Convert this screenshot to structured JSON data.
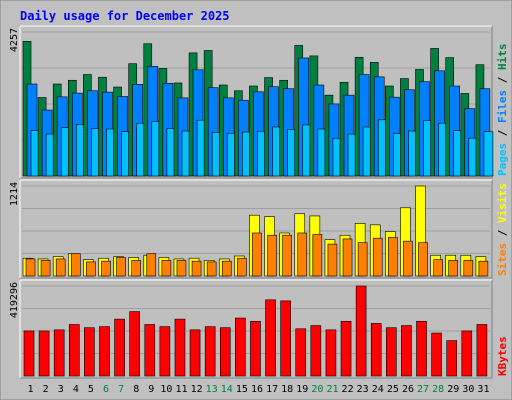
{
  "chart_data": [
    {
      "type": "bar",
      "panel": "hits_files_pages",
      "title": "Daily usage for December 2025",
      "ymax_label": "4257",
      "ylim": [
        0,
        4257
      ],
      "categories": [
        "1",
        "2",
        "3",
        "4",
        "5",
        "6",
        "7",
        "8",
        "9",
        "10",
        "11",
        "12",
        "13",
        "14",
        "15",
        "16",
        "17",
        "18",
        "19",
        "20",
        "21",
        "22",
        "23",
        "24",
        "25",
        "26",
        "27",
        "28",
        "29",
        "30",
        "31"
      ],
      "weekend_days": [
        "6",
        "7",
        "13",
        "14",
        "20",
        "21",
        "27",
        "28"
      ],
      "series": [
        {
          "name": "Hits",
          "color": "#008040",
          "values": [
            3980,
            2320,
            2720,
            2830,
            3000,
            2920,
            2630,
            3320,
            3910,
            3180,
            2750,
            3640,
            3710,
            2690,
            2520,
            2660,
            2910,
            2830,
            3860,
            3550,
            2390,
            2770,
            3510,
            3360,
            2660,
            2880,
            3150,
            3770,
            3500,
            2440,
            3290
          ]
        },
        {
          "name": "Files",
          "color": "#0080FF",
          "values": [
            2720,
            1950,
            2340,
            2450,
            2520,
            2480,
            2350,
            2710,
            3240,
            2740,
            2310,
            3140,
            2610,
            2310,
            2240,
            2490,
            2640,
            2580,
            3490,
            2690,
            2130,
            2390,
            3000,
            2930,
            2330,
            2550,
            2790,
            3110,
            2660,
            1990,
            2580
          ]
        },
        {
          "name": "Pages",
          "color": "#00C0FF",
          "values": [
            1340,
            1240,
            1430,
            1520,
            1400,
            1390,
            1310,
            1560,
            1610,
            1400,
            1330,
            1650,
            1290,
            1260,
            1300,
            1320,
            1450,
            1380,
            1510,
            1390,
            1110,
            1240,
            1450,
            1660,
            1250,
            1330,
            1640,
            1560,
            1340,
            1120,
            1310
          ]
        }
      ],
      "legend": [
        "Pages",
        "Files",
        "Hits"
      ]
    },
    {
      "type": "bar",
      "panel": "visits_sites",
      "ymax_label": "1214",
      "ylim": [
        0,
        1214
      ],
      "categories": [
        "1",
        "2",
        "3",
        "4",
        "5",
        "6",
        "7",
        "8",
        "9",
        "10",
        "11",
        "12",
        "13",
        "14",
        "15",
        "16",
        "17",
        "18",
        "19",
        "20",
        "21",
        "22",
        "23",
        "24",
        "25",
        "26",
        "27",
        "28",
        "29",
        "30",
        "31"
      ],
      "series": [
        {
          "name": "Visits",
          "color": "#FFFF00",
          "values": [
            240,
            230,
            260,
            300,
            220,
            240,
            260,
            250,
            280,
            250,
            230,
            240,
            210,
            230,
            270,
            820,
            800,
            580,
            840,
            810,
            490,
            550,
            710,
            690,
            600,
            920,
            1214,
            280,
            280,
            280,
            260
          ]
        },
        {
          "name": "Sites",
          "color": "#FF8000",
          "values": [
            230,
            210,
            230,
            300,
            190,
            200,
            250,
            210,
            300,
            210,
            210,
            200,
            190,
            200,
            240,
            580,
            550,
            550,
            580,
            560,
            430,
            500,
            450,
            510,
            520,
            470,
            450,
            220,
            210,
            210,
            200
          ]
        }
      ],
      "legend": [
        "Sites",
        "Visits"
      ]
    },
    {
      "type": "bar",
      "panel": "kbytes",
      "ymax_label": "419296",
      "ylim": [
        0,
        419296
      ],
      "categories": [
        "1",
        "2",
        "3",
        "4",
        "5",
        "6",
        "7",
        "8",
        "9",
        "10",
        "11",
        "12",
        "13",
        "14",
        "15",
        "16",
        "17",
        "18",
        "19",
        "20",
        "21",
        "22",
        "23",
        "24",
        "25",
        "26",
        "27",
        "28",
        "29",
        "30",
        "31"
      ],
      "series": [
        {
          "name": "KBytes",
          "color": "#FF0000",
          "values": [
            210000,
            210000,
            215000,
            240000,
            225000,
            230000,
            265000,
            300000,
            240000,
            230000,
            265000,
            215000,
            230000,
            225000,
            270000,
            255000,
            355000,
            350000,
            220000,
            235000,
            215000,
            255000,
            419296,
            245000,
            225000,
            235000,
            255000,
            200000,
            165000,
            210000,
            240000
          ]
        }
      ],
      "legend": [
        "KBytes"
      ]
    }
  ],
  "colors": {
    "background": "#C0C0C0",
    "plot_area": "#BFBFBF",
    "title": "#0000FF",
    "weekday_label": "#000000",
    "weekend_label": "#008040",
    "separator": "#FFFFFF",
    "divider": "#000000"
  }
}
